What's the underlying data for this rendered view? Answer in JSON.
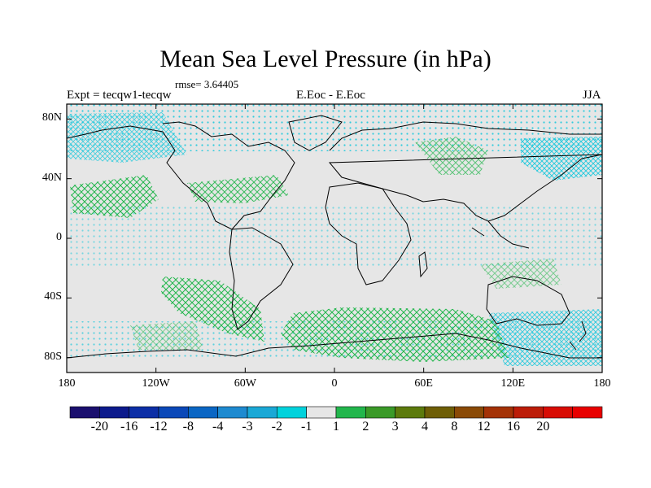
{
  "title": "Mean Sea Level Pressure (in hPa)",
  "rmse_label": "rmse= 3.64405",
  "left_label": "Expt = tecqw1-tecqw",
  "center_label": "E.Eoc - E.Eoc",
  "right_label": "JJA",
  "lat_ticks": [
    "80N",
    "40N",
    "0",
    "40S",
    "80S"
  ],
  "lon_ticks": [
    "180",
    "120W",
    "60W",
    "0",
    "60E",
    "120E",
    "180"
  ],
  "colorbar": {
    "colors": [
      "#1a0f6e",
      "#0c1a8c",
      "#0c2ea6",
      "#0a48b8",
      "#0a66c4",
      "#1e8ad0",
      "#1aa8d6",
      "#00d2dc",
      "#e6e6e6",
      "#22b64c",
      "#3a9a28",
      "#5c7a0c",
      "#6e5e06",
      "#8a4a06",
      "#a43206",
      "#bc1c08",
      "#d80c04",
      "#e80000"
    ],
    "labels": [
      "-20",
      "-16",
      "-12",
      "-8",
      "-4",
      "-3",
      "-2",
      "-1",
      "1",
      "2",
      "3",
      "4",
      "8",
      "12",
      "16",
      "20"
    ]
  },
  "colors": {
    "background": "#e6e6e6",
    "positive_hatch": "#22b64c",
    "negative_hatch": "#1ec8dc",
    "coastline": "#000000"
  }
}
